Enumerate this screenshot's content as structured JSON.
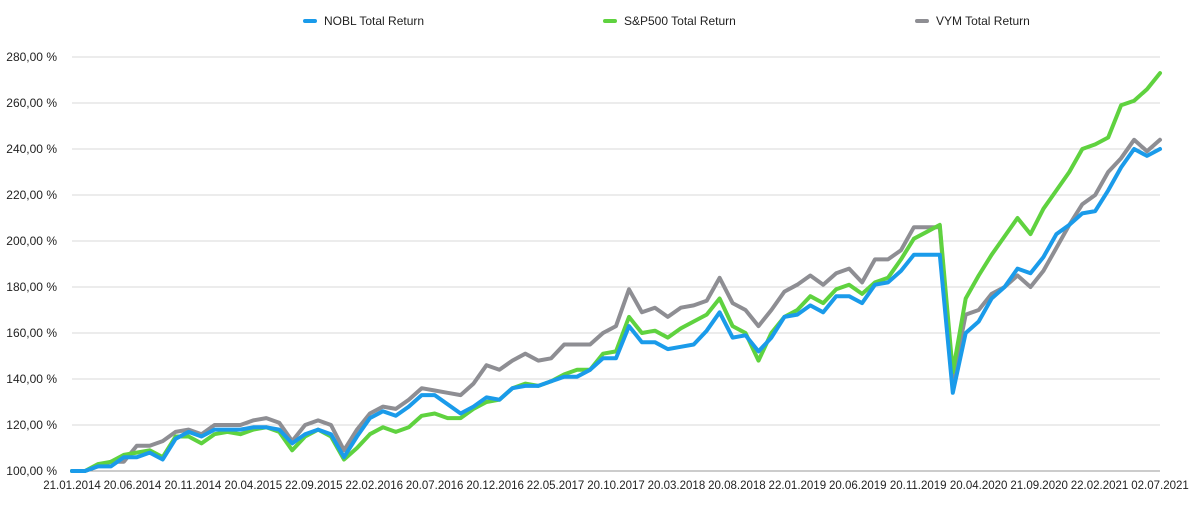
{
  "chart_data": {
    "type": "line",
    "title": "",
    "xlabel": "",
    "ylabel": "",
    "ylim": [
      100,
      280
    ],
    "y_ticks": [
      "100,00 %",
      "120,00 %",
      "140,00 %",
      "160,00 %",
      "180,00 %",
      "200,00 %",
      "220,00 %",
      "240,00 %",
      "260,00 %",
      "280,00 %"
    ],
    "x_ticks": [
      "21.01.2014",
      "20.06.2014",
      "20.11.2014",
      "20.04.2015",
      "22.09.2015",
      "22.02.2016",
      "20.07.2016",
      "20.12.2016",
      "22.05.2017",
      "20.10.2017",
      "20.03.2018",
      "20.08.2018",
      "22.01.2019",
      "20.06.2019",
      "20.11.2019",
      "20.04.2020",
      "21.09.2020",
      "22.02.2021",
      "02.07.2021"
    ],
    "grid": true,
    "legend_position": "top-center",
    "series": [
      {
        "name": "NOBL Total Return",
        "color": "#1a9bea",
        "values": [
          100.0,
          100.0,
          102.0,
          102.0,
          106.0,
          106.0,
          108.0,
          105.0,
          114.0,
          117.0,
          115.0,
          118.0,
          118.0,
          118.0,
          119.0,
          119.0,
          118.0,
          112.0,
          116.0,
          118.0,
          116.0,
          106.0,
          115.0,
          123.0,
          126.0,
          124.0,
          128.0,
          133.0,
          133.0,
          129.0,
          125.0,
          128.0,
          132.0,
          131.0,
          136.0,
          137.0,
          137.0,
          139.0,
          141.0,
          141.0,
          144.0,
          149.0,
          149.0,
          163.0,
          156.0,
          156.0,
          153.0,
          154.0,
          155.0,
          161.0,
          169.0,
          158.0,
          159.0,
          152.0,
          158.0,
          167.0,
          168.0,
          172.0,
          169.0,
          176.0,
          176.0,
          173.0,
          181.0,
          182.0,
          187.0,
          194.0,
          194.0,
          194.0,
          134.0,
          160.0,
          165.0,
          175.0,
          180.0,
          188.0,
          186.0,
          193.0,
          203.0,
          207.0,
          212.0,
          213.0,
          222.0,
          232.0,
          240.0,
          237.0,
          240.0
        ]
      },
      {
        "name": "S&P500 Total Return",
        "color": "#5fd23f",
        "values": [
          100.0,
          100.0,
          103.0,
          104.0,
          107.0,
          108.0,
          109.0,
          106.0,
          115.0,
          115.0,
          112.0,
          116.0,
          117.0,
          116.0,
          118.0,
          119.0,
          117.0,
          109.0,
          115.0,
          118.0,
          115.0,
          105.0,
          110.0,
          116.0,
          119.0,
          117.0,
          119.0,
          124.0,
          125.0,
          123.0,
          123.0,
          127.0,
          130.0,
          131.0,
          136.0,
          138.0,
          137.0,
          139.0,
          142.0,
          144.0,
          144.0,
          151.0,
          152.0,
          167.0,
          160.0,
          161.0,
          158.0,
          162.0,
          165.0,
          168.0,
          175.0,
          163.0,
          160.0,
          148.0,
          160.0,
          167.0,
          170.0,
          176.0,
          173.0,
          179.0,
          181.0,
          177.0,
          182.0,
          184.0,
          192.0,
          201.0,
          204.0,
          207.0,
          143.0,
          175.0,
          185.0,
          194.0,
          202.0,
          210.0,
          203.0,
          214.0,
          222.0,
          230.0,
          240.0,
          242.0,
          245.0,
          259.0,
          261.0,
          266.0,
          273.0
        ]
      },
      {
        "name": "VYM Total Return",
        "color": "#8e8e93",
        "values": [
          100.0,
          100.0,
          102.0,
          104.0,
          104.0,
          111.0,
          111.0,
          113.0,
          117.0,
          118.0,
          116.0,
          120.0,
          120.0,
          120.0,
          122.0,
          123.0,
          121.0,
          113.0,
          120.0,
          122.0,
          120.0,
          109.0,
          118.0,
          125.0,
          128.0,
          127.0,
          131.0,
          136.0,
          135.0,
          134.0,
          133.0,
          138.0,
          146.0,
          144.0,
          148.0,
          151.0,
          148.0,
          149.0,
          155.0,
          155.0,
          155.0,
          160.0,
          163.0,
          179.0,
          169.0,
          171.0,
          167.0,
          171.0,
          172.0,
          174.0,
          184.0,
          173.0,
          170.0,
          163.0,
          170.0,
          178.0,
          181.0,
          185.0,
          181.0,
          186.0,
          188.0,
          182.0,
          192.0,
          192.0,
          196.0,
          206.0,
          206.0,
          206.0,
          140.0,
          168.0,
          170.0,
          177.0,
          180.0,
          185.0,
          180.0,
          187.0,
          197.0,
          207.0,
          216.0,
          220.0,
          230.0,
          236.0,
          244.0,
          239.0,
          244.0
        ]
      }
    ]
  }
}
